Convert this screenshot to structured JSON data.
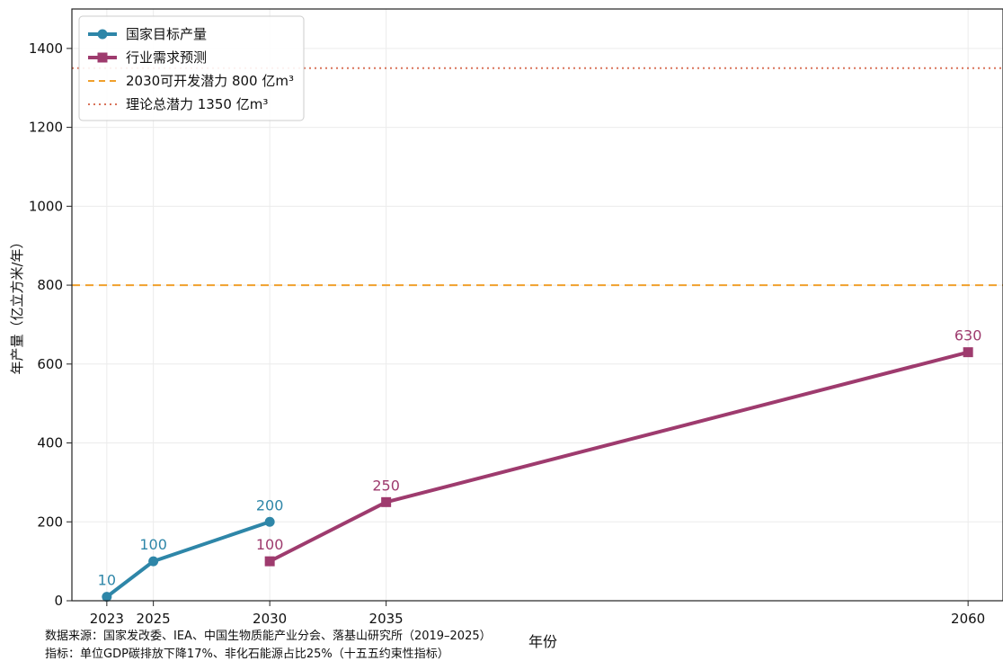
{
  "chart_data": {
    "type": "line",
    "ylabel": "年产量（亿立方米/年）",
    "xlabel": "年份",
    "xlim": [
      2021.5,
      2061.5
    ],
    "ylim": [
      0,
      1500
    ],
    "x_ticks": [
      2023,
      2025,
      2030,
      2035,
      2060
    ],
    "y_ticks": [
      0,
      200,
      400,
      600,
      800,
      1000,
      1200,
      1400
    ],
    "grid": true,
    "legend_position": "top-left",
    "series": [
      {
        "name": "国家目标产量",
        "color": "#2e86a8",
        "marker": "circle",
        "x": [
          2023,
          2025,
          2030
        ],
        "values": [
          10,
          100,
          200
        ],
        "labels": [
          "10",
          "100",
          "200"
        ]
      },
      {
        "name": "行业需求预测",
        "color": "#9e3b6e",
        "marker": "square",
        "x": [
          2030,
          2035,
          2060
        ],
        "values": [
          100,
          250,
          630
        ],
        "labels": [
          "100",
          "250",
          "630"
        ]
      }
    ],
    "reference_lines": [
      {
        "name": "2030可开发潜力 800 亿m³",
        "value": 800,
        "color": "#f0a02c",
        "style": "dashed"
      },
      {
        "name": "理论总潜力 1350 亿m³",
        "value": 1350,
        "color": "#d9735a",
        "style": "dotted"
      }
    ]
  },
  "footnotes": {
    "source": "数据来源：国家发改委、IEA、中国生物质能产业分会、落基山研究所（2019–2025）",
    "indicator": "指标：单位GDP碳排放下降17%、非化石能源占比25%（十五五约束性指标）"
  }
}
